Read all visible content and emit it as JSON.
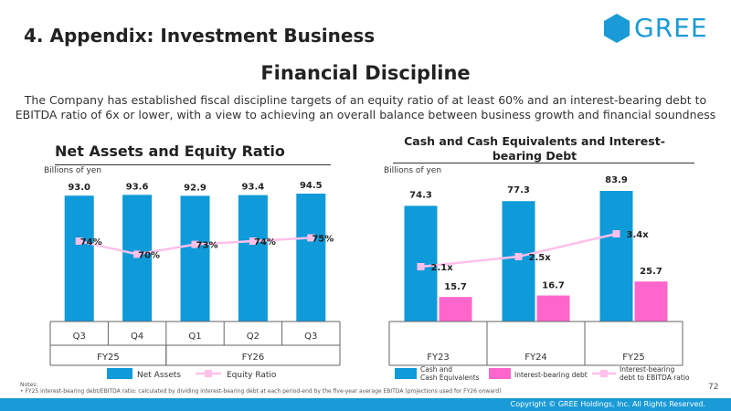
{
  "header": {
    "section_title": "4. Appendix: Investment Business",
    "logo_text": "GREE",
    "main_title": "Financial Discipline",
    "description": "The Company has established fiscal discipline targets of an equity ratio of at least 60% and an interest-bearing debt to EBITDA ratio of 6x or lower, with a view to achieving an overall balance between business growth and financial soundness"
  },
  "notes": {
    "label": "Notes:",
    "text": "• FY25 interest-bearing debt/EBITDA ratio: calculated by dividing interest-bearing debt at each period-end by the five-year average EBITDA (projections used for FY26 onward)"
  },
  "page_number": "72",
  "footer": {
    "copyright": "Copyright © GREE Holdings, Inc. All Rights Reserved."
  },
  "colors": {
    "brand_blue": "#1a9ad6",
    "bar_blue": "#0f9ad9",
    "pink": "#ff66cc",
    "line_pink": "#ffc0ea"
  },
  "chart_data": [
    {
      "type": "bar",
      "title": "Net Assets and Equity Ratio",
      "unit_label": "Billions of yen",
      "categories": [
        "Q3",
        "Q4",
        "Q1",
        "Q2",
        "Q3"
      ],
      "groups": [
        {
          "label": "FY25",
          "count": 2
        },
        {
          "label": "FY26",
          "count": 3
        }
      ],
      "ylim": [
        0,
        100
      ],
      "series": [
        {
          "name": "Net Assets",
          "kind": "bar",
          "values": [
            93.0,
            93.6,
            92.9,
            93.4,
            94.5
          ],
          "labels": [
            "93.0",
            "93.6",
            "92.9",
            "93.4",
            "94.5"
          ]
        },
        {
          "name": "Equity Ratio",
          "kind": "line",
          "values": [
            74,
            70,
            73,
            74,
            75
          ],
          "labels": [
            "74%",
            "70%",
            "73%",
            "74%",
            "75%"
          ]
        }
      ]
    },
    {
      "type": "bar",
      "title": "Cash and Cash Equivalents and Interest-bearing Debt",
      "unit_label": "Billions of yen",
      "categories": [
        "FY23",
        "FY24",
        "FY25"
      ],
      "ylim": [
        0,
        100
      ],
      "series": [
        {
          "name": "Cash and Cash Equivalents",
          "kind": "bar",
          "values": [
            74.3,
            77.3,
            83.9
          ],
          "labels": [
            "74.3",
            "77.3",
            "83.9"
          ]
        },
        {
          "name": "Interest-bearing debt",
          "kind": "bar",
          "values": [
            15.7,
            16.7,
            25.7
          ],
          "labels": [
            "15.7",
            "16.7",
            "25.7"
          ]
        },
        {
          "name": "Interest-bearing debt to EBITDA ratio",
          "kind": "line",
          "values": [
            2.1,
            2.5,
            3.4
          ],
          "labels": [
            "2.1x",
            "2.5x",
            "3.4x"
          ]
        }
      ]
    }
  ]
}
